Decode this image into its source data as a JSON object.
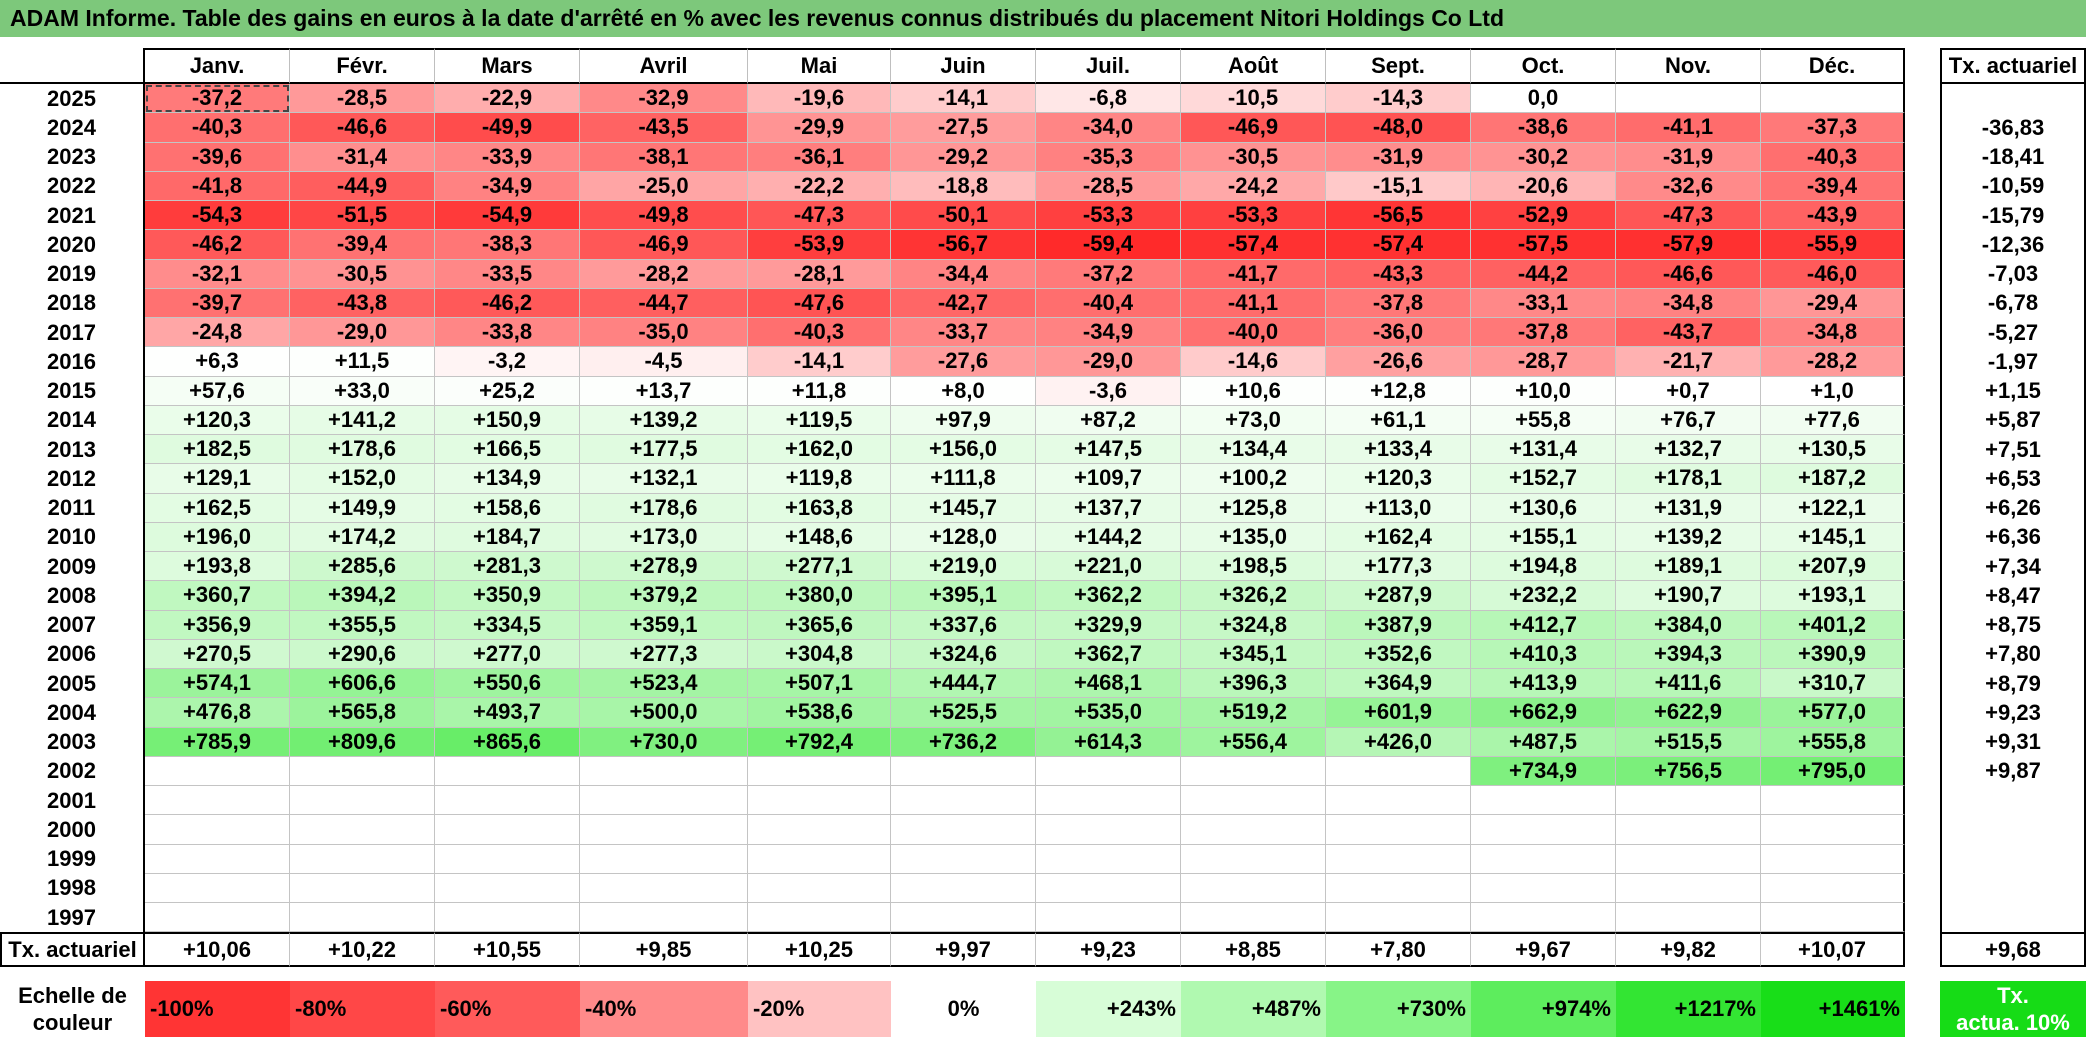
{
  "theme": {
    "title_bar": "#7dc87b"
  },
  "chart_data": {
    "type": "heatmap",
    "title": "ADAM Informe. Table des gains en euros à la date d'arrêté en % avec les revenus connus distribués du placement Nitori Holdings Co Ltd",
    "x": [
      "Janv.",
      "Févr.",
      "Mars",
      "Avril",
      "Mai",
      "Juin",
      "Juil.",
      "Août",
      "Sept.",
      "Oct.",
      "Nov.",
      "Déc."
    ],
    "y": [
      "2025",
      "2024",
      "2023",
      "2022",
      "2021",
      "2020",
      "2019",
      "2018",
      "2017",
      "2016",
      "2015",
      "2014",
      "2013",
      "2012",
      "2011",
      "2010",
      "2009",
      "2008",
      "2007",
      "2006",
      "2005",
      "2004",
      "2003",
      "2002",
      "2001",
      "2000",
      "1999",
      "1998",
      "1997"
    ],
    "values": [
      [
        -37.2,
        -28.5,
        -22.9,
        -32.9,
        -19.6,
        -14.1,
        -6.8,
        -10.5,
        -14.3,
        0.0,
        null,
        null
      ],
      [
        -40.3,
        -46.6,
        -49.9,
        -43.5,
        -29.9,
        -27.5,
        -34.0,
        -46.9,
        -48.0,
        -38.6,
        -41.1,
        -37.3
      ],
      [
        -39.6,
        -31.4,
        -33.9,
        -38.1,
        -36.1,
        -29.2,
        -35.3,
        -30.5,
        -31.9,
        -30.2,
        -31.9,
        -40.3
      ],
      [
        -41.8,
        -44.9,
        -34.9,
        -25.0,
        -22.2,
        -18.8,
        -28.5,
        -24.2,
        -15.1,
        -20.6,
        -32.6,
        -39.4
      ],
      [
        -54.3,
        -51.5,
        -54.9,
        -49.8,
        -47.3,
        -50.1,
        -53.3,
        -53.3,
        -56.5,
        -52.9,
        -47.3,
        -43.9
      ],
      [
        -46.2,
        -39.4,
        -38.3,
        -46.9,
        -53.9,
        -56.7,
        -59.4,
        -57.4,
        -57.4,
        -57.5,
        -57.9,
        -55.9
      ],
      [
        -32.1,
        -30.5,
        -33.5,
        -28.2,
        -28.1,
        -34.4,
        -37.2,
        -41.7,
        -43.3,
        -44.2,
        -46.6,
        -46.0
      ],
      [
        -39.7,
        -43.8,
        -46.2,
        -44.7,
        -47.6,
        -42.7,
        -40.4,
        -41.1,
        -37.8,
        -33.1,
        -34.8,
        -29.4
      ],
      [
        -24.8,
        -29.0,
        -33.8,
        -35.0,
        -40.3,
        -33.7,
        -34.9,
        -40.0,
        -36.0,
        -37.8,
        -43.7,
        -34.8
      ],
      [
        6.3,
        11.5,
        -3.2,
        -4.5,
        -14.1,
        -27.6,
        -29.0,
        -14.6,
        -26.6,
        -28.7,
        -21.7,
        -28.2
      ],
      [
        57.6,
        33.0,
        25.2,
        13.7,
        11.8,
        8.0,
        -3.6,
        10.6,
        12.8,
        10.0,
        0.7,
        1.0
      ],
      [
        120.3,
        141.2,
        150.9,
        139.2,
        119.5,
        97.9,
        87.2,
        73.0,
        61.1,
        55.8,
        76.7,
        77.6
      ],
      [
        182.5,
        178.6,
        166.5,
        177.5,
        162.0,
        156.0,
        147.5,
        134.4,
        133.4,
        131.4,
        132.7,
        130.5
      ],
      [
        129.1,
        152.0,
        134.9,
        132.1,
        119.8,
        111.8,
        109.7,
        100.2,
        120.3,
        152.7,
        178.1,
        187.2
      ],
      [
        162.5,
        149.9,
        158.6,
        178.6,
        163.8,
        145.7,
        137.7,
        125.8,
        113.0,
        130.6,
        131.9,
        122.1
      ],
      [
        196.0,
        174.2,
        184.7,
        173.0,
        148.6,
        128.0,
        144.2,
        135.0,
        162.4,
        155.1,
        139.2,
        145.1
      ],
      [
        193.8,
        285.6,
        281.3,
        278.9,
        277.1,
        219.0,
        221.0,
        198.5,
        177.3,
        194.8,
        189.1,
        207.9
      ],
      [
        360.7,
        394.2,
        350.9,
        379.2,
        380.0,
        395.1,
        362.2,
        326.2,
        287.9,
        232.2,
        190.7,
        193.1
      ],
      [
        356.9,
        355.5,
        334.5,
        359.1,
        365.6,
        337.6,
        329.9,
        324.8,
        387.9,
        412.7,
        384.0,
        401.2
      ],
      [
        270.5,
        290.6,
        277.0,
        277.3,
        304.8,
        324.6,
        362.7,
        345.1,
        352.6,
        410.3,
        394.3,
        390.9
      ],
      [
        574.1,
        606.6,
        550.6,
        523.4,
        507.1,
        444.7,
        468.1,
        396.3,
        364.9,
        413.9,
        411.6,
        310.7
      ],
      [
        476.8,
        565.8,
        493.7,
        500.0,
        538.6,
        525.5,
        535.0,
        519.2,
        601.9,
        662.9,
        622.9,
        577.0
      ],
      [
        785.9,
        809.6,
        865.6,
        730.0,
        792.4,
        736.2,
        614.3,
        556.4,
        426.0,
        487.5,
        515.5,
        555.8
      ],
      [
        null,
        null,
        null,
        null,
        null,
        null,
        null,
        null,
        null,
        734.9,
        756.5,
        795.0
      ],
      [
        null,
        null,
        null,
        null,
        null,
        null,
        null,
        null,
        null,
        null,
        null,
        null
      ],
      [
        null,
        null,
        null,
        null,
        null,
        null,
        null,
        null,
        null,
        null,
        null,
        null
      ],
      [
        null,
        null,
        null,
        null,
        null,
        null,
        null,
        null,
        null,
        null,
        null,
        null
      ],
      [
        null,
        null,
        null,
        null,
        null,
        null,
        null,
        null,
        null,
        null,
        null,
        null
      ],
      [
        null,
        null,
        null,
        null,
        null,
        null,
        null,
        null,
        null,
        null,
        null,
        null
      ]
    ],
    "summary_label": "Tx. actuariel",
    "row_summary": [
      null,
      -36.83,
      -18.41,
      -10.59,
      -15.79,
      -12.36,
      -7.03,
      -6.78,
      -5.27,
      -1.97,
      1.15,
      5.87,
      7.51,
      6.53,
      6.26,
      6.36,
      7.34,
      8.47,
      8.75,
      7.8,
      8.79,
      9.23,
      9.31,
      9.87,
      null,
      null,
      null,
      null,
      null
    ],
    "column_summary": [
      10.06,
      10.22,
      10.55,
      9.85,
      10.25,
      9.97,
      9.23,
      8.85,
      7.8,
      9.67,
      9.82,
      10.07
    ],
    "overall_summary": 9.68,
    "grid": true,
    "legend_position": "bottom",
    "color_scale": {
      "label": "Echelle de couleur",
      "stops": [
        {
          "label": "-100%",
          "color": "#ff3434"
        },
        {
          "label": "-80%",
          "color": "#ff4747"
        },
        {
          "label": "-60%",
          "color": "#ff5a5a"
        },
        {
          "label": "-40%",
          "color": "#ff8a8a"
        },
        {
          "label": "-20%",
          "color": "#ffc2c2"
        },
        {
          "label": "0%",
          "color": "#ffffff"
        },
        {
          "label": "+243%",
          "color": "#d7fdd7"
        },
        {
          "label": "+487%",
          "color": "#b0f9b0"
        },
        {
          "label": "+730%",
          "color": "#87f487"
        },
        {
          "label": "+974%",
          "color": "#5ded5d"
        },
        {
          "label": "+1217%",
          "color": "#33e533"
        },
        {
          "label": "+1461%",
          "color": "#18de18"
        }
      ],
      "reference": {
        "label": "Tx.\nactua. 10%",
        "color": "#16dc16"
      }
    }
  }
}
